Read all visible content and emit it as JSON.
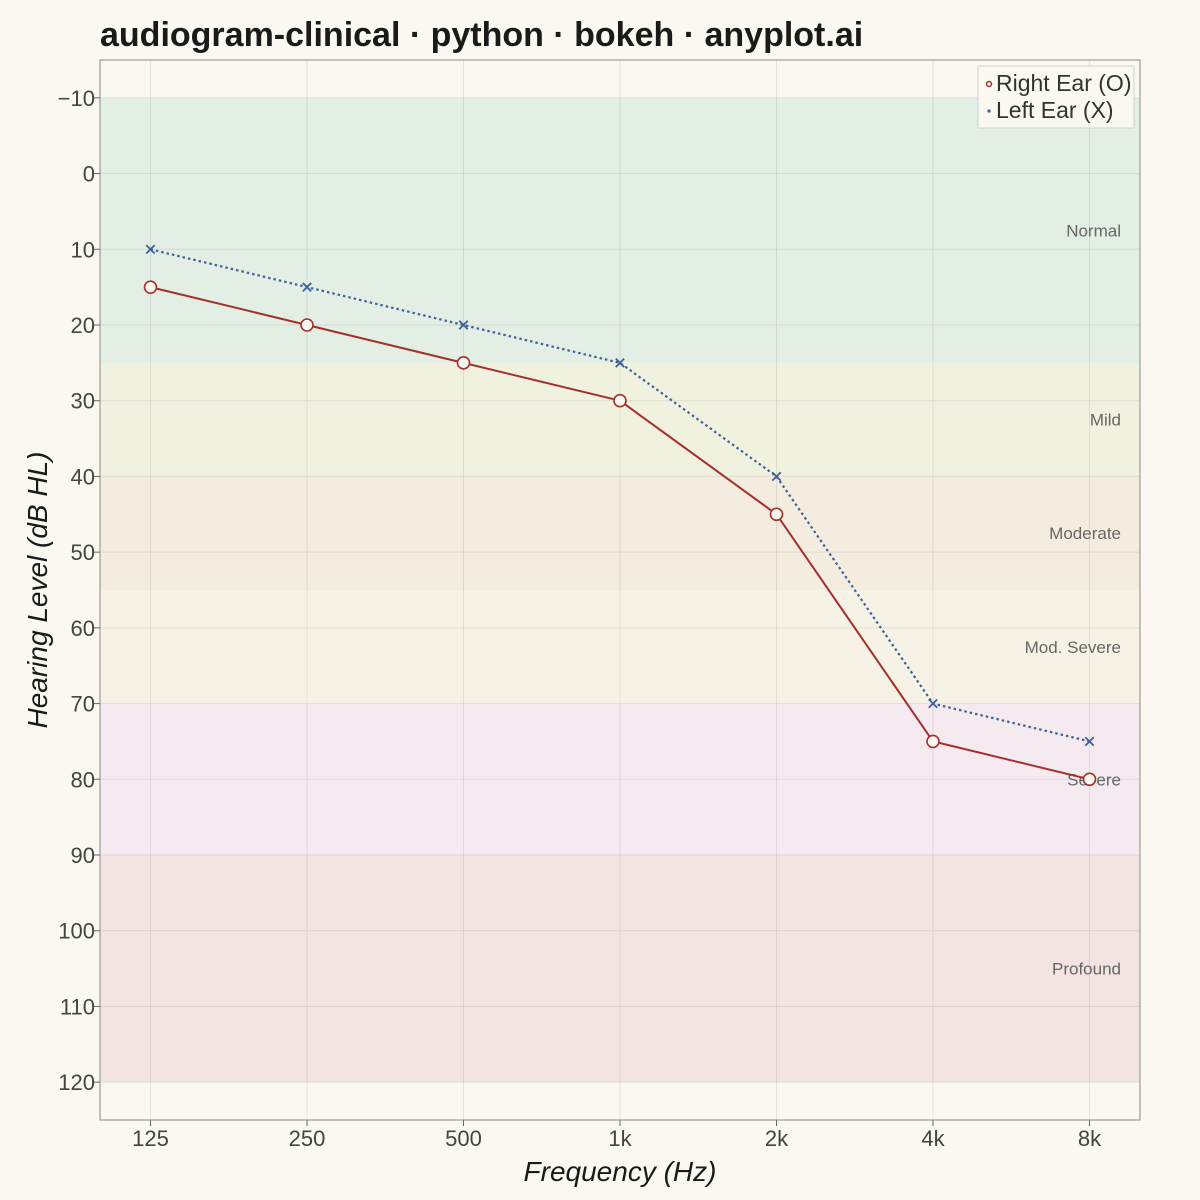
{
  "chart_data": {
    "type": "line",
    "title": "audiogram-clinical · python · bokeh · anyplot.ai",
    "xlabel": "Frequency (Hz)",
    "ylabel": "Hearing Level (dB HL)",
    "categories": [
      "125",
      "250",
      "500",
      "1k",
      "2k",
      "4k",
      "8k"
    ],
    "y_ticks": [
      -10,
      0,
      10,
      20,
      30,
      40,
      50,
      60,
      70,
      80,
      90,
      100,
      110,
      120
    ],
    "ylim": [
      -15,
      125
    ],
    "y_inverted": true,
    "grid": true,
    "legend_position": "top-right",
    "series": [
      {
        "name": "Right Ear (O)",
        "values": [
          15,
          20,
          25,
          30,
          45,
          75,
          80
        ],
        "color": "#A3302C",
        "marker": "circle",
        "line": "solid"
      },
      {
        "name": "Left Ear (X)",
        "values": [
          10,
          15,
          20,
          25,
          40,
          70,
          75
        ],
        "color": "#3D619A",
        "marker": "x",
        "line": "dotted"
      }
    ],
    "bands": [
      {
        "label": "Normal",
        "from": -10,
        "to": 25,
        "color": "#E3EEE4"
      },
      {
        "label": "Mild",
        "from": 25,
        "to": 40,
        "color": "#F1F1DF"
      },
      {
        "label": "Moderate",
        "from": 40,
        "to": 55,
        "color": "#F4ECDF"
      },
      {
        "label": "Mod. Severe",
        "from": 55,
        "to": 70,
        "color": "#F6F3E6"
      },
      {
        "label": "Severe",
        "from": 70,
        "to": 90,
        "color": "#F5EAF0"
      },
      {
        "label": "Profound",
        "from": 90,
        "to": 120,
        "color": "#F3E4E1"
      }
    ]
  }
}
